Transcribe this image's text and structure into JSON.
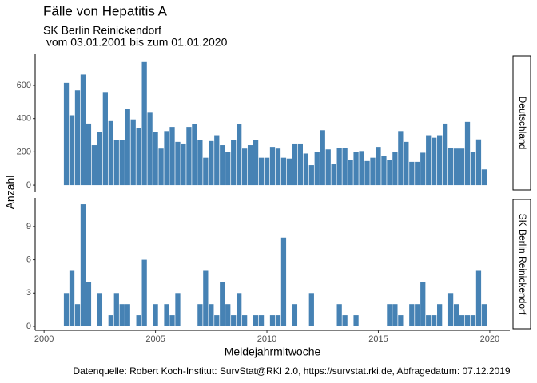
{
  "title": "Fälle von Hepatitis A",
  "subtitle": [
    "SK Berlin Reinickendorf",
    " vom 03.01.2001 bis zum 01.01.2020"
  ],
  "caption": "Datenquelle: Robert Koch-Institut: SurvStat@RKI 2.0, https://survstat.rki.de, Abfragedatum: 07.12.2019",
  "chart_data": [
    {
      "type": "bar",
      "panel": "Deutschland",
      "color": "#4682b4",
      "x": [
        2001,
        2001.25,
        2001.5,
        2001.75,
        2002,
        2002.25,
        2002.5,
        2002.75,
        2003,
        2003.25,
        2003.5,
        2003.75,
        2004,
        2004.25,
        2004.5,
        2004.75,
        2005,
        2005.25,
        2005.5,
        2005.75,
        2006,
        2006.25,
        2006.5,
        2006.75,
        2007,
        2007.25,
        2007.5,
        2007.75,
        2008,
        2008.25,
        2008.5,
        2008.75,
        2009,
        2009.25,
        2009.5,
        2009.75,
        2010,
        2010.25,
        2010.5,
        2010.75,
        2011,
        2011.25,
        2011.5,
        2011.75,
        2012,
        2012.25,
        2012.5,
        2012.75,
        2013,
        2013.25,
        2013.5,
        2013.75,
        2014,
        2014.25,
        2014.5,
        2014.75,
        2015,
        2015.25,
        2015.5,
        2015.75,
        2016,
        2016.25,
        2016.5,
        2016.75,
        2017,
        2017.25,
        2017.5,
        2017.75,
        2018,
        2018.25,
        2018.5,
        2018.75,
        2019,
        2019.25,
        2019.5,
        2019.75
      ],
      "values": [
        615,
        420,
        570,
        665,
        370,
        240,
        320,
        560,
        385,
        270,
        270,
        460,
        395,
        345,
        740,
        440,
        320,
        220,
        325,
        350,
        260,
        250,
        350,
        365,
        270,
        165,
        265,
        300,
        240,
        200,
        270,
        365,
        220,
        240,
        270,
        165,
        165,
        230,
        220,
        165,
        160,
        250,
        250,
        190,
        120,
        200,
        330,
        215,
        125,
        225,
        225,
        150,
        200,
        205,
        145,
        165,
        230,
        175,
        150,
        200,
        325,
        260,
        140,
        140,
        195,
        300,
        285,
        300,
        370,
        225,
        220,
        220,
        380,
        200,
        275,
        95
      ],
      "xlim": [
        1999.6,
        2020.9
      ],
      "xticks": [
        2000,
        2005,
        2010,
        2015,
        2020
      ],
      "ylim": [
        -38,
        787
      ],
      "yticks": [
        0,
        200,
        400,
        600
      ]
    },
    {
      "type": "bar",
      "panel": "SK Berlin Reinickendorf",
      "color": "#4682b4",
      "x": [
        2001,
        2001.25,
        2001.5,
        2001.75,
        2002,
        2002.25,
        2002.5,
        2002.75,
        2003,
        2003.25,
        2003.5,
        2003.75,
        2004,
        2004.25,
        2004.5,
        2004.75,
        2005,
        2005.25,
        2005.5,
        2005.75,
        2006,
        2006.25,
        2006.5,
        2006.75,
        2007,
        2007.25,
        2007.5,
        2007.75,
        2008,
        2008.25,
        2008.5,
        2008.75,
        2009,
        2009.25,
        2009.5,
        2009.75,
        2010,
        2010.25,
        2010.5,
        2010.75,
        2011,
        2011.25,
        2011.5,
        2011.75,
        2012,
        2012.25,
        2012.5,
        2012.75,
        2013,
        2013.25,
        2013.5,
        2013.75,
        2014,
        2014.25,
        2014.5,
        2014.75,
        2015,
        2015.25,
        2015.5,
        2015.75,
        2016,
        2016.25,
        2016.5,
        2016.75,
        2017,
        2017.25,
        2017.5,
        2017.75,
        2018,
        2018.25,
        2018.5,
        2018.75,
        2019,
        2019.25,
        2019.5,
        2019.75
      ],
      "values": [
        3,
        5,
        2,
        11,
        4,
        0,
        3,
        0,
        1,
        3,
        2,
        2,
        0,
        1,
        6,
        0,
        2,
        0,
        2,
        1,
        3,
        0,
        0,
        0,
        2,
        5,
        2,
        1,
        4,
        2,
        1,
        3,
        1,
        0,
        1,
        1,
        0,
        1,
        1,
        8,
        0,
        2,
        0,
        0,
        3,
        0,
        0,
        0,
        0,
        2,
        1,
        0,
        1,
        0,
        0,
        0,
        0,
        0,
        2,
        2,
        1,
        0,
        2,
        2,
        4,
        1,
        1,
        2,
        0,
        3,
        2,
        1,
        1,
        1,
        5,
        2
      ],
      "xlim": [
        1999.6,
        2020.9
      ],
      "xticks": [
        2000,
        2005,
        2010,
        2015,
        2020
      ],
      "ylim": [
        -0.36,
        11.58
      ],
      "yticks": [
        0,
        3,
        6,
        9
      ],
      "xlabel": "Meldejahrmitwoche",
      "ylabel": "Anzahl"
    }
  ]
}
